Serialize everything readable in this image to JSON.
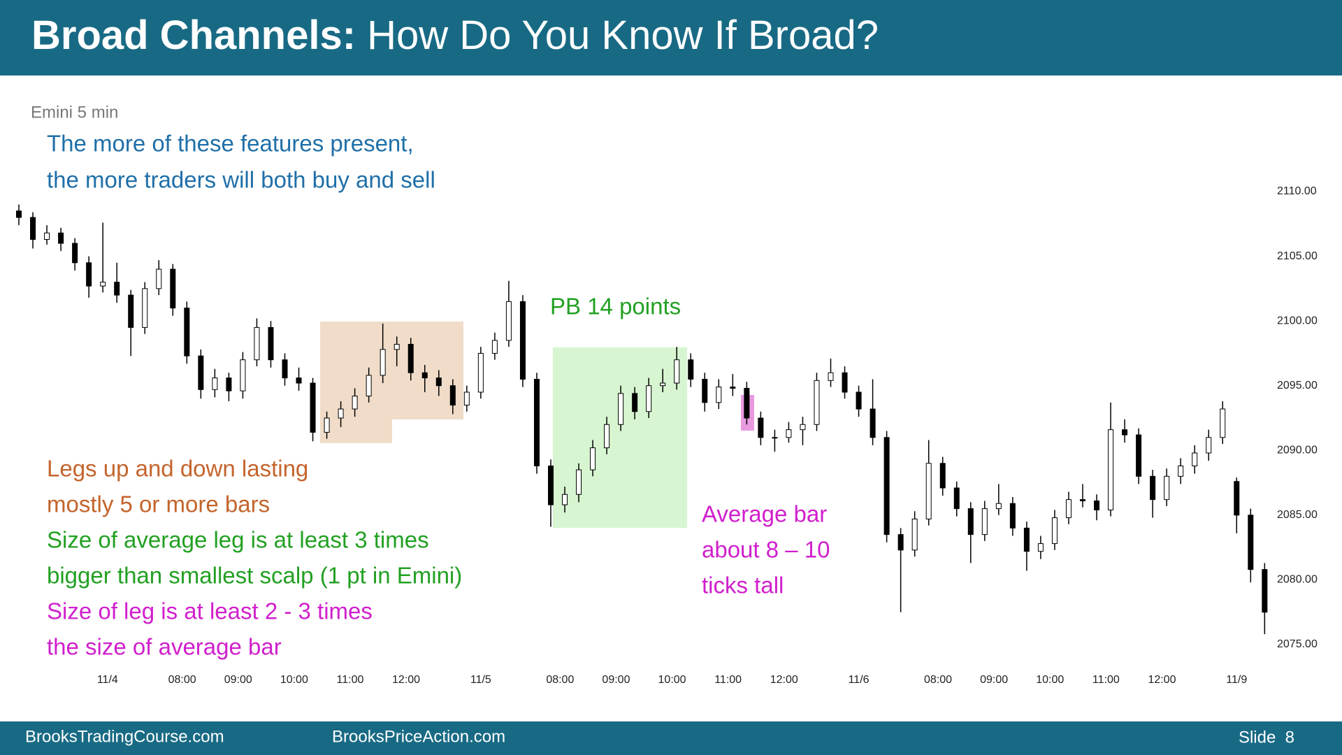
{
  "header": {
    "title_bold": "Broad Channels:",
    "title_rest": "How Do You Know If Broad?"
  },
  "notes": {
    "intro": [
      "The more of these features present,",
      "the more traders will both buy and sell"
    ],
    "legs": [
      "Legs up and down lasting",
      "mostly 5 or more bars"
    ],
    "leg_size": [
      "Size of average leg is at least 3 times",
      "bigger than smallest scalp (1 pt in Emini)"
    ],
    "leg_vs_bar": [
      "Size of leg is at least 2 - 3 times",
      "the size of average bar"
    ],
    "pullback": "PB 14 points",
    "average_bar": [
      "Average bar",
      "about 8 – 10",
      "ticks tall"
    ]
  },
  "footer": {
    "left": "BrooksTradingCourse.com",
    "middle": "BrooksPriceAction.com",
    "slide": "Slide  8"
  },
  "chart_data": {
    "type": "candlestick",
    "title": "Emini 5 min",
    "up_color": "#ffffff",
    "down_color": "#000000",
    "wick_color": "#000000",
    "x": [
      0,
      3,
      6,
      9,
      12,
      15,
      18,
      21,
      24,
      27,
      30,
      33,
      36,
      39,
      42,
      45,
      48,
      51,
      54,
      57,
      60,
      63,
      66,
      69,
      72,
      75,
      78,
      81,
      84,
      87,
      90,
      93,
      96,
      99,
      102,
      105,
      108,
      111,
      114,
      117,
      120,
      123,
      126,
      129,
      132,
      135,
      138,
      141,
      144,
      147,
      150,
      153,
      156,
      159,
      162,
      165,
      168,
      171,
      174,
      177,
      180,
      183,
      186,
      189,
      192,
      195,
      198,
      201,
      204,
      207,
      210,
      213,
      216,
      219,
      222,
      225,
      228,
      231,
      234,
      237,
      240,
      243,
      246,
      249,
      252,
      255,
      258,
      261,
      264,
      267
    ],
    "open": [
      2108.5,
      2108,
      2106.3,
      2106.8,
      2106,
      2104.5,
      2102.7,
      2103,
      2102,
      2099.5,
      2102.5,
      2104,
      2101,
      2097.3,
      2094.7,
      2095.6,
      2094.6,
      2097,
      2099.5,
      2097,
      2095.6,
      2095.2,
      2091.4,
      2092.5,
      2093.2,
      2094.2,
      2095.8,
      2097.8,
      2098.2,
      2096,
      2095.6,
      2095,
      2093.5,
      2094.5,
      2097.5,
      2098.5,
      2101.5,
      2095.5,
      2088.8,
      2085.8,
      2086.6,
      2088.5,
      2090.2,
      2092,
      2094.4,
      2093,
      2095,
      2095.2,
      2097,
      2095.5,
      2093.7,
      2094.9,
      2094.8,
      2092.5,
      2091,
      2091,
      2091.6,
      2092,
      2095.4,
      2096,
      2094.5,
      2093.2,
      2091,
      2083.5,
      2082.3,
      2084.7,
      2089,
      2087.1,
      2085.5,
      2083.5,
      2085.5,
      2085.9,
      2084,
      2082.2,
      2082.8,
      2084.8,
      2086.2,
      2086.1,
      2085.4,
      2091.6,
      2091.2,
      2088,
      2086.2,
      2088,
      2088.8,
      2089.8,
      2091,
      2087.6,
      2085,
      2080.8
    ],
    "high": [
      2109,
      2108.4,
      2107.4,
      2107.2,
      2106.4,
      2105,
      2107.6,
      2104.5,
      2102.4,
      2103,
      2104.7,
      2104.4,
      2101.5,
      2097.8,
      2096.3,
      2096,
      2097.6,
      2100.2,
      2100,
      2097.5,
      2096.4,
      2095.6,
      2093,
      2093.8,
      2094.8,
      2096.4,
      2099.8,
      2098.8,
      2098.7,
      2096.6,
      2096.2,
      2095.5,
      2095,
      2098,
      2099.1,
      2103.1,
      2102,
      2096,
      2089.3,
      2087.2,
      2089,
      2090.8,
      2092.6,
      2095,
      2094.9,
      2095.6,
      2096.3,
      2098,
      2097.5,
      2096,
      2095.5,
      2095.9,
      2095.3,
      2093,
      2091.6,
      2092.2,
      2092.6,
      2096,
      2097.1,
      2096.5,
      2095,
      2095.5,
      2091.5,
      2084,
      2085.3,
      2090.8,
      2089.5,
      2087.6,
      2086,
      2086.1,
      2087.4,
      2086.4,
      2084.5,
      2083.4,
      2085.4,
      2086.8,
      2087.4,
      2086.6,
      2093.7,
      2092.4,
      2091.7,
      2088.5,
      2088.6,
      2089.4,
      2090.4,
      2091.6,
      2093.8,
      2087.9,
      2085.5,
      2081.3
    ],
    "low": [
      2107.4,
      2105.6,
      2105.9,
      2105.4,
      2103.9,
      2101.8,
      2102.2,
      2101.4,
      2097.3,
      2099,
      2102,
      2100.4,
      2096.7,
      2094,
      2094.1,
      2093.8,
      2094,
      2096.5,
      2096.4,
      2095,
      2094.6,
      2090.7,
      2090.9,
      2091.8,
      2092.6,
      2093.7,
      2095.2,
      2096.5,
      2095.4,
      2094.5,
      2094.2,
      2092.8,
      2093,
      2094,
      2097,
      2098,
      2094.9,
      2088.2,
      2084.1,
      2085.2,
      2086,
      2088,
      2089.7,
      2091.5,
      2092.4,
      2092.5,
      2094.5,
      2094.7,
      2094.9,
      2093,
      2093.2,
      2094.2,
      2092,
      2090.4,
      2089.9,
      2090.6,
      2090.4,
      2091.5,
      2094.9,
      2094,
      2092.6,
      2090.4,
      2082.9,
      2077.5,
      2081.8,
      2084.2,
      2086.5,
      2084.9,
      2081.3,
      2083,
      2085,
      2083.4,
      2080.7,
      2081.6,
      2082.3,
      2084.3,
      2085.6,
      2084.6,
      2084.9,
      2090.6,
      2087.4,
      2084.8,
      2085.7,
      2087.4,
      2088.2,
      2089.2,
      2090.5,
      2083.6,
      2079.8,
      2075.8
    ],
    "close": [
      2108,
      2106.3,
      2106.8,
      2106,
      2104.5,
      2102.7,
      2103,
      2102,
      2099.5,
      2102.5,
      2104,
      2101,
      2097.3,
      2094.7,
      2095.6,
      2094.6,
      2097,
      2099.5,
      2097,
      2095.6,
      2095.2,
      2091.4,
      2092.5,
      2093.2,
      2094.2,
      2095.8,
      2097.8,
      2098.2,
      2096,
      2095.6,
      2095,
      2093.5,
      2094.5,
      2097.5,
      2098.5,
      2101.5,
      2095.5,
      2088.8,
      2085.8,
      2086.6,
      2088.5,
      2090.2,
      2092,
      2094.4,
      2093,
      2095,
      2095.2,
      2097,
      2095.5,
      2093.7,
      2094.9,
      2094.8,
      2092.5,
      2091,
      2091,
      2091.6,
      2092,
      2095.4,
      2096,
      2094.5,
      2093.2,
      2091,
      2083.5,
      2082.3,
      2084.7,
      2089,
      2087.1,
      2085.5,
      2083.5,
      2085.5,
      2085.9,
      2084,
      2082.2,
      2082.8,
      2084.8,
      2086.2,
      2086.1,
      2085.4,
      2091.6,
      2091.2,
      2088,
      2086.2,
      2088,
      2088.8,
      2089.8,
      2091,
      2093.2,
      2085,
      2080.8,
      2077.5
    ],
    "xlim": [
      0,
      268
    ],
    "xticks": [
      {
        "value": 19,
        "label": "11/4"
      },
      {
        "value": 35,
        "label": "08:00"
      },
      {
        "value": 47,
        "label": "09:00"
      },
      {
        "value": 59,
        "label": "10:00"
      },
      {
        "value": 71,
        "label": "11:00"
      },
      {
        "value": 83,
        "label": "12:00"
      },
      {
        "value": 99,
        "label": "11/5"
      },
      {
        "value": 116,
        "label": "08:00"
      },
      {
        "value": 128,
        "label": "09:00"
      },
      {
        "value": 140,
        "label": "10:00"
      },
      {
        "value": 152,
        "label": "11:00"
      },
      {
        "value": 164,
        "label": "12:00"
      },
      {
        "value": 180,
        "label": "11/6"
      },
      {
        "value": 197,
        "label": "08:00"
      },
      {
        "value": 209,
        "label": "09:00"
      },
      {
        "value": 221,
        "label": "10:00"
      },
      {
        "value": 233,
        "label": "11:00"
      },
      {
        "value": 245,
        "label": "12:00"
      },
      {
        "value": 261,
        "label": "11/9"
      }
    ],
    "ylim": [
      2075,
      2110
    ],
    "yticks": [
      {
        "value": 2075,
        "label": "2075.00"
      },
      {
        "value": 2080,
        "label": "2080.00"
      },
      {
        "value": 2085,
        "label": "2085.00"
      },
      {
        "value": 2090,
        "label": "2090.00"
      },
      {
        "value": 2095,
        "label": "2095.00"
      },
      {
        "value": 2100,
        "label": "2100.00"
      },
      {
        "value": 2105,
        "label": "2105.00"
      },
      {
        "value": 2110,
        "label": "2110.00"
      }
    ],
    "grid": false
  }
}
